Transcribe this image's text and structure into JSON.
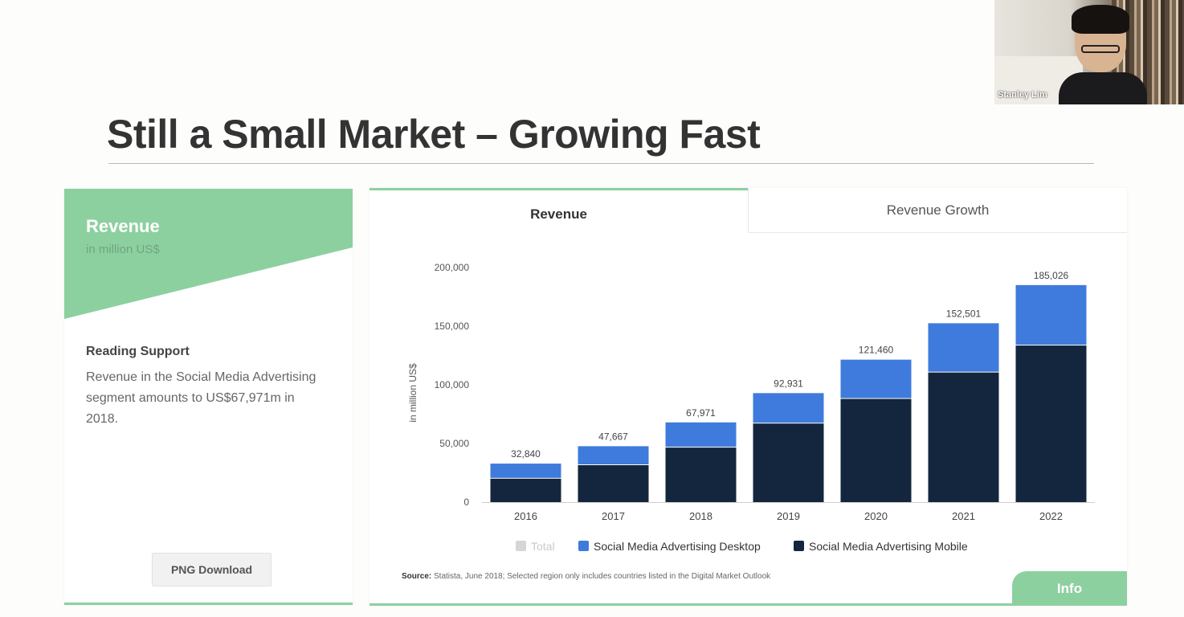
{
  "video": {
    "participant_name": "Stanley Lim"
  },
  "slide": {
    "title": "Still a Small Market – Growing Fast"
  },
  "left_card": {
    "title": "Revenue",
    "subtitle": "in million US$",
    "reading_title": "Reading Support",
    "reading_text": "Revenue in the Social Media Advertising segment amounts to US$67,971m in 2018.",
    "png_button": "PNG Download"
  },
  "tabs": [
    {
      "label": "Revenue",
      "active": true
    },
    {
      "label": "Revenue Growth",
      "active": false
    }
  ],
  "legend": {
    "total": "Total",
    "desktop": "Social Media Advertising Desktop",
    "mobile": "Social Media Advertising Mobile"
  },
  "source": {
    "label": "Source:",
    "text": "Statista, June 2018; Selected region only includes countries listed in the Digital Market Outlook"
  },
  "info_button": "Info",
  "colors": {
    "accent_green": "#8dd0a0",
    "desktop": "#3f7bdc",
    "mobile": "#14263d",
    "total": "#d6d6d6"
  },
  "chart_data": {
    "type": "bar",
    "stacked": true,
    "categories": [
      "2016",
      "2017",
      "2018",
      "2019",
      "2020",
      "2021",
      "2022"
    ],
    "series": [
      {
        "name": "Social Media Advertising Mobile",
        "values": [
          20000,
          31500,
          46500,
          67000,
          88000,
          110500,
          133500
        ]
      },
      {
        "name": "Social Media Advertising Desktop",
        "values": [
          12840,
          16167,
          21471,
          25931,
          33460,
          42001,
          51526
        ]
      }
    ],
    "totals": [
      32840,
      47667,
      67971,
      92931,
      121460,
      152501,
      185026
    ],
    "total_labels": [
      "32,840",
      "47,667",
      "67,971",
      "92,931",
      "121,460",
      "152,501",
      "185,026"
    ],
    "ylabel": "in million US$",
    "ylim": [
      0,
      200000
    ],
    "yticks": [
      0,
      50000,
      100000,
      150000,
      200000
    ],
    "ytick_labels": [
      "0",
      "50,000",
      "100,000",
      "150,000",
      "200,000"
    ],
    "grid": false,
    "legend_position": "bottom"
  }
}
